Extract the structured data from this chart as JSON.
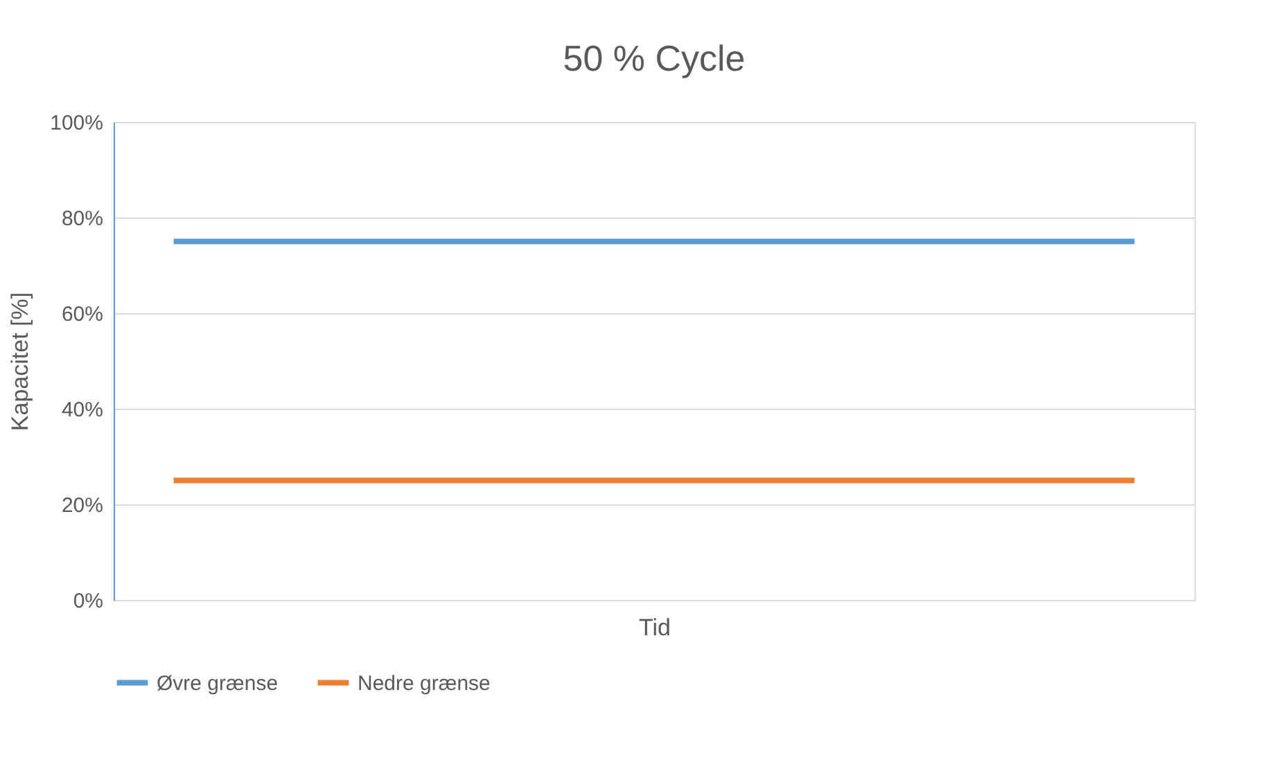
{
  "chart_data": {
    "type": "line",
    "title": "50 % Cycle",
    "xlabel": "Tid",
    "ylabel": "Kapacitet  [%]",
    "categories": [
      null,
      null,
      null,
      null,
      null,
      null,
      null,
      null,
      null
    ],
    "series": [
      {
        "name": "Øvre grænse",
        "color": "#5b9bd5",
        "values": [
          75,
          75,
          75,
          75,
          75,
          75,
          75,
          75,
          75
        ]
      },
      {
        "name": "Nedre grænse",
        "color": "#ed7d31",
        "values": [
          25,
          25,
          25,
          25,
          25,
          25,
          25,
          25,
          25
        ]
      }
    ],
    "ylim": [
      0,
      100
    ],
    "yticks": [
      {
        "value": 0,
        "label": "0%"
      },
      {
        "value": 20,
        "label": "20%"
      },
      {
        "value": 40,
        "label": "40%"
      },
      {
        "value": 60,
        "label": "60%"
      },
      {
        "value": 80,
        "label": "80%"
      },
      {
        "value": 100,
        "label": "100%"
      }
    ],
    "grid": "y",
    "legend": "bottom",
    "marker": "none",
    "line_style": "solid"
  }
}
